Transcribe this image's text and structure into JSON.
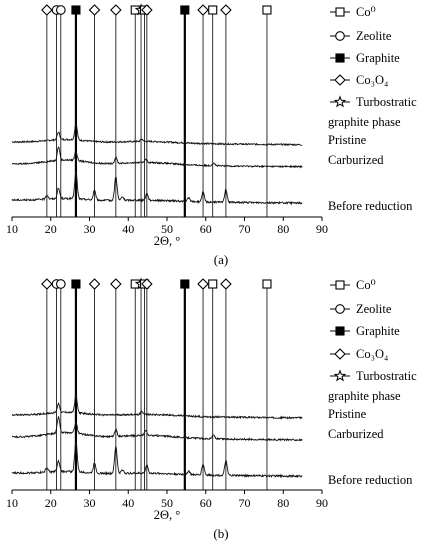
{
  "chart_data": [
    {
      "panel_label": "(a)",
      "type": "line",
      "xlabel": "2Θ, °",
      "xlim": [
        10,
        90
      ],
      "xticks": [
        10,
        20,
        30,
        40,
        50,
        60,
        70,
        80,
        90
      ],
      "y_axis": "none",
      "series": [
        {
          "name": "Pristine",
          "offset": 2,
          "peaks": [
            [
              22.0,
              0.25
            ],
            [
              26.5,
              0.55
            ],
            [
              43.5,
              0.08
            ]
          ],
          "halo": 0.1
        },
        {
          "name": "Carburized",
          "offset": 1,
          "peaks": [
            [
              22.0,
              0.45
            ],
            [
              26.5,
              0.3
            ],
            [
              36.8,
              0.2
            ],
            [
              44.5,
              0.12
            ],
            [
              62.0,
              0.1
            ]
          ],
          "halo": 0.15
        },
        {
          "name": "Before reduction",
          "offset": 0,
          "peaks": [
            [
              19.0,
              0.12
            ],
            [
              22.0,
              0.3
            ],
            [
              26.5,
              0.8
            ],
            [
              31.3,
              0.28
            ],
            [
              36.8,
              0.7
            ],
            [
              38.5,
              0.1
            ],
            [
              44.8,
              0.2
            ],
            [
              55.6,
              0.1
            ],
            [
              59.3,
              0.28
            ],
            [
              65.2,
              0.38
            ]
          ],
          "halo": 0.06
        }
      ],
      "reference_lines": [
        {
          "x": 19.0,
          "marker": "diamond"
        },
        {
          "x": 21.5,
          "marker": "circle"
        },
        {
          "x": 22.6,
          "marker": "circle"
        },
        {
          "x": 26.5,
          "marker": "filled-square"
        },
        {
          "x": 31.3,
          "marker": "diamond"
        },
        {
          "x": 36.8,
          "marker": "diamond"
        },
        {
          "x": 41.8,
          "marker": "square"
        },
        {
          "x": 43.3,
          "marker": "star"
        },
        {
          "x": 44.2,
          "marker": "square"
        },
        {
          "x": 44.8,
          "marker": "diamond"
        },
        {
          "x": 54.6,
          "marker": "filled-square"
        },
        {
          "x": 59.3,
          "marker": "diamond"
        },
        {
          "x": 61.8,
          "marker": "square"
        },
        {
          "x": 65.2,
          "marker": "diamond"
        },
        {
          "x": 75.8,
          "marker": "square"
        }
      ],
      "legend": [
        {
          "marker": "square",
          "label": "Co⁰"
        },
        {
          "marker": "circle",
          "label": "Zeolite"
        },
        {
          "marker": "filled-square",
          "label": "Graphite"
        },
        {
          "marker": "diamond",
          "label": "Co₃O₄"
        },
        {
          "marker": "star",
          "label": "Turbostratic",
          "label2": "graphite phase"
        }
      ]
    },
    {
      "panel_label": "(b)",
      "type": "line",
      "xlabel": "2Θ, °",
      "xlim": [
        10,
        90
      ],
      "xticks": [
        10,
        20,
        30,
        40,
        50,
        60,
        70,
        80,
        90
      ],
      "y_axis": "none",
      "series": [
        {
          "name": "Pristine",
          "offset": 2,
          "peaks": [
            [
              22.0,
              0.28
            ],
            [
              26.5,
              0.55
            ],
            [
              43.5,
              0.1
            ]
          ],
          "halo": 0.1
        },
        {
          "name": "Carburized",
          "offset": 1,
          "peaks": [
            [
              22.0,
              0.5
            ],
            [
              26.5,
              0.35
            ],
            [
              36.8,
              0.22
            ],
            [
              44.5,
              0.15
            ],
            [
              62.0,
              0.12
            ]
          ],
          "halo": 0.15
        },
        {
          "name": "Before reduction",
          "offset": 0,
          "peaks": [
            [
              19.0,
              0.12
            ],
            [
              22.0,
              0.28
            ],
            [
              26.5,
              0.85
            ],
            [
              31.3,
              0.28
            ],
            [
              36.8,
              0.75
            ],
            [
              38.5,
              0.1
            ],
            [
              44.8,
              0.22
            ],
            [
              55.6,
              0.1
            ],
            [
              59.3,
              0.3
            ],
            [
              65.2,
              0.4
            ]
          ],
          "halo": 0.06
        }
      ],
      "reference_lines": [
        {
          "x": 19.0,
          "marker": "diamond"
        },
        {
          "x": 21.5,
          "marker": "circle"
        },
        {
          "x": 22.6,
          "marker": "circle"
        },
        {
          "x": 26.5,
          "marker": "filled-square"
        },
        {
          "x": 31.3,
          "marker": "diamond"
        },
        {
          "x": 36.8,
          "marker": "diamond"
        },
        {
          "x": 41.8,
          "marker": "square"
        },
        {
          "x": 43.3,
          "marker": "star"
        },
        {
          "x": 44.2,
          "marker": "square"
        },
        {
          "x": 44.8,
          "marker": "diamond"
        },
        {
          "x": 54.6,
          "marker": "filled-square"
        },
        {
          "x": 59.3,
          "marker": "diamond"
        },
        {
          "x": 61.8,
          "marker": "square"
        },
        {
          "x": 65.2,
          "marker": "diamond"
        },
        {
          "x": 75.8,
          "marker": "square"
        }
      ],
      "legend": [
        {
          "marker": "square",
          "label": "Co⁰"
        },
        {
          "marker": "circle",
          "label": "Zeolite"
        },
        {
          "marker": "filled-square",
          "label": "Graphite"
        },
        {
          "marker": "diamond",
          "label": "Co₃O₄"
        },
        {
          "marker": "star",
          "label": "Turbostratic",
          "label2": "graphite phase"
        }
      ]
    }
  ]
}
